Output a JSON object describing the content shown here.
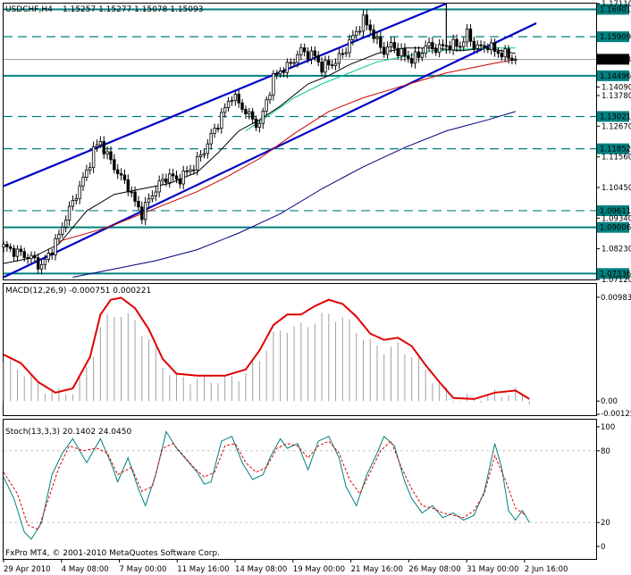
{
  "header": {
    "symbol": "USDCHF,H4",
    "ohlc": "1.15257 1.15277 1.15078 1.15093"
  },
  "colors": {
    "background": "#ffffff",
    "hline": "#00807f",
    "channel": "#0000c8",
    "ma_fast": "#000000",
    "ma_green": "#00c890",
    "ma_red": "#c80000",
    "ma_navy": "#000080",
    "macd_hist": "#a0a0a0",
    "macd_signal": "#e00000",
    "stoch_main": "#008080",
    "stoch_signal": "#e00000"
  },
  "chart_data": [
    {
      "type": "candlestick",
      "symbol": "USDCHF",
      "timeframe": "H4",
      "ylim": [
        1.0712,
        1.1711
      ],
      "price_ticks": [
        "1.17110",
        "1.14090",
        "1.13780",
        "1.12670",
        "1.11560",
        "1.10450",
        "1.09340",
        "1.08230",
        "1.07120"
      ],
      "current_price": "1.15093",
      "horizontal_levels": [
        {
          "label": "1.16901",
          "value": 1.16901,
          "style": "solid"
        },
        {
          "label": "1.15909",
          "value": 1.15909,
          "style": "dashed"
        },
        {
          "label": "1.14496",
          "value": 1.14496,
          "style": "solid"
        },
        {
          "label": "1.13021",
          "value": 1.13021,
          "style": "dashed"
        },
        {
          "label": "1.11852",
          "value": 1.11852,
          "style": "dashed"
        },
        {
          "label": "1.09611",
          "value": 1.09611,
          "style": "dashed"
        },
        {
          "label": "1.09006",
          "value": 1.09006,
          "style": "solid"
        },
        {
          "label": "1.07336",
          "value": 1.07336,
          "style": "solid"
        }
      ],
      "close_path": [
        [
          0,
          1.083
        ],
        [
          4,
          1.081
        ],
        [
          8,
          1.079
        ],
        [
          11,
          1.076
        ],
        [
          13,
          1.08
        ],
        [
          16,
          1.087
        ],
        [
          18,
          1.094
        ],
        [
          20,
          1.099
        ],
        [
          22,
          1.105
        ],
        [
          24,
          1.11
        ],
        [
          26,
          1.118
        ],
        [
          28,
          1.121
        ],
        [
          30,
          1.116
        ],
        [
          32,
          1.112
        ],
        [
          34,
          1.108
        ],
        [
          36,
          1.105
        ],
        [
          38,
          1.099
        ],
        [
          40,
          1.095
        ],
        [
          42,
          1.1
        ],
        [
          44,
          1.104
        ],
        [
          46,
          1.107
        ],
        [
          48,
          1.109
        ],
        [
          50,
          1.107
        ],
        [
          52,
          1.109
        ],
        [
          54,
          1.111
        ],
        [
          56,
          1.114
        ],
        [
          58,
          1.118
        ],
        [
          60,
          1.123
        ],
        [
          62,
          1.128
        ],
        [
          64,
          1.133
        ],
        [
          66,
          1.138
        ],
        [
          68,
          1.135
        ],
        [
          70,
          1.132
        ],
        [
          72,
          1.129
        ],
        [
          74,
          1.127
        ],
        [
          76,
          1.136
        ],
        [
          78,
          1.144
        ],
        [
          80,
          1.147
        ],
        [
          82,
          1.148
        ],
        [
          84,
          1.151
        ],
        [
          86,
          1.154
        ],
        [
          88,
          1.153
        ],
        [
          90,
          1.152
        ],
        [
          92,
          1.148
        ],
        [
          94,
          1.149
        ],
        [
          96,
          1.15
        ],
        [
          98,
          1.153
        ],
        [
          100,
          1.157
        ],
        [
          102,
          1.161
        ],
        [
          104,
          1.165
        ],
        [
          106,
          1.162
        ],
        [
          108,
          1.157
        ],
        [
          110,
          1.154
        ],
        [
          112,
          1.156
        ],
        [
          114,
          1.154
        ],
        [
          116,
          1.152
        ],
        [
          118,
          1.151
        ],
        [
          120,
          1.152
        ],
        [
          122,
          1.156
        ],
        [
          124,
          1.155
        ],
        [
          126,
          1.155
        ],
        [
          128,
          1.156
        ],
        [
          130,
          1.156
        ],
        [
          132,
          1.156
        ],
        [
          134,
          1.16
        ],
        [
          136,
          1.156
        ],
        [
          138,
          1.155
        ],
        [
          140,
          1.156
        ],
        [
          142,
          1.154
        ],
        [
          144,
          1.153
        ],
        [
          146,
          1.152
        ],
        [
          148,
          1.1509
        ]
      ],
      "moving_averages": [
        {
          "color": "#000000",
          "points": [
            [
              0,
              1.077
            ],
            [
              8,
              1.079
            ],
            [
              16,
              1.084
            ],
            [
              24,
              1.096
            ],
            [
              32,
              1.102
            ],
            [
              40,
              1.104
            ],
            [
              48,
              1.106
            ],
            [
              56,
              1.11
            ],
            [
              62,
              1.117
            ],
            [
              68,
              1.125
            ],
            [
              74,
              1.129
            ],
            [
              80,
              1.134
            ],
            [
              88,
              1.142
            ],
            [
              94,
              1.145
            ],
            [
              100,
              1.149
            ],
            [
              108,
              1.153
            ],
            [
              116,
              1.155
            ],
            [
              124,
              1.155
            ],
            [
              132,
              1.154
            ],
            [
              140,
              1.155
            ],
            [
              148,
              1.153
            ]
          ]
        },
        {
          "color": "#00c890",
          "points": [
            [
              70,
              1.125
            ],
            [
              76,
              1.13
            ],
            [
              84,
              1.137
            ],
            [
              92,
              1.142
            ],
            [
              100,
              1.146
            ],
            [
              108,
              1.15
            ],
            [
              116,
              1.152
            ],
            [
              124,
              1.154
            ],
            [
              132,
              1.1545
            ],
            [
              140,
              1.155
            ],
            [
              148,
              1.155
            ]
          ]
        },
        {
          "color": "#c80000",
          "points": [
            [
              16,
              1.085
            ],
            [
              30,
              1.09
            ],
            [
              44,
              1.097
            ],
            [
              56,
              1.103
            ],
            [
              64,
              1.108
            ],
            [
              74,
              1.115
            ],
            [
              84,
              1.124
            ],
            [
              94,
              1.132
            ],
            [
              104,
              1.137
            ],
            [
              112,
              1.14
            ],
            [
              120,
              1.143
            ],
            [
              128,
              1.146
            ],
            [
              136,
              1.148
            ],
            [
              142,
              1.1495
            ],
            [
              148,
              1.1508
            ]
          ]
        },
        {
          "color": "#000080",
          "points": [
            [
              20,
              1.072
            ],
            [
              32,
              1.075
            ],
            [
              44,
              1.078
            ],
            [
              56,
              1.082
            ],
            [
              68,
              1.088
            ],
            [
              80,
              1.095
            ],
            [
              92,
              1.104
            ],
            [
              104,
              1.112
            ],
            [
              116,
              1.119
            ],
            [
              128,
              1.125
            ],
            [
              140,
              1.129
            ],
            [
              148,
              1.132
            ]
          ]
        }
      ],
      "channel_lines": [
        [
          [
            0,
            1.105
          ],
          [
            128,
            1.1711
          ]
        ],
        [
          [
            0,
            1.072
          ],
          [
            154,
            1.164
          ]
        ]
      ],
      "x_tick_labels": [
        "29 Apr 2010",
        "4 May 08:00",
        "7 May 00:00",
        "11 May 16:00",
        "14 May 08:00",
        "19 May 00:00",
        "21 May 16:00",
        "26 May 08:00",
        "31 May 00:00",
        "2 Jun 16:00"
      ],
      "footer": "FxPro MT4, © 2001-2010 MetaQuotes Software Corp."
    },
    {
      "type": "bar",
      "title": "MACD(12,26,9) -0.000751 0.000221",
      "ylim": [
        -0.00125,
        0.00983
      ],
      "ticks": [
        "0.009834",
        "0.00",
        "-0.00125"
      ],
      "signal_path": [
        [
          0,
          0.0044
        ],
        [
          5,
          0.0036
        ],
        [
          10,
          0.0018
        ],
        [
          15,
          0.0008
        ],
        [
          20,
          0.0012
        ],
        [
          25,
          0.0042
        ],
        [
          28,
          0.0082
        ],
        [
          31,
          0.0096
        ],
        [
          34,
          0.0098
        ],
        [
          38,
          0.0088
        ],
        [
          42,
          0.0068
        ],
        [
          46,
          0.004
        ],
        [
          50,
          0.0026
        ],
        [
          56,
          0.0024
        ],
        [
          64,
          0.0024
        ],
        [
          70,
          0.003
        ],
        [
          74,
          0.0048
        ],
        [
          78,
          0.0072
        ],
        [
          82,
          0.0082
        ],
        [
          86,
          0.0082
        ],
        [
          90,
          0.009
        ],
        [
          94,
          0.0096
        ],
        [
          98,
          0.0092
        ],
        [
          102,
          0.008
        ],
        [
          106,
          0.0064
        ],
        [
          110,
          0.0058
        ],
        [
          114,
          0.006
        ],
        [
          118,
          0.0052
        ],
        [
          122,
          0.0034
        ],
        [
          126,
          0.0018
        ],
        [
          130,
          0.0003
        ],
        [
          136,
          0.0002
        ],
        [
          142,
          0.0008
        ],
        [
          148,
          0.001
        ],
        [
          152,
          0.0002
        ]
      ]
    },
    {
      "type": "line",
      "title": "Stoch(13,3,3) 20.1402 24.0450",
      "ylim": [
        0,
        100
      ],
      "ticks": [
        "100",
        "80",
        "20",
        "0"
      ],
      "main_path": [
        [
          0,
          58
        ],
        [
          3,
          40
        ],
        [
          6,
          12
        ],
        [
          8,
          6
        ],
        [
          11,
          20
        ],
        [
          14,
          60
        ],
        [
          17,
          78
        ],
        [
          20,
          90
        ],
        [
          24,
          70
        ],
        [
          28,
          90
        ],
        [
          31,
          70
        ],
        [
          33,
          54
        ],
        [
          36,
          74
        ],
        [
          39,
          48
        ],
        [
          41,
          34
        ],
        [
          44,
          60
        ],
        [
          47,
          96
        ],
        [
          50,
          82
        ],
        [
          53,
          72
        ],
        [
          56,
          62
        ],
        [
          58,
          52
        ],
        [
          60,
          54
        ],
        [
          63,
          88
        ],
        [
          66,
          92
        ],
        [
          69,
          70
        ],
        [
          72,
          56
        ],
        [
          75,
          60
        ],
        [
          77,
          74
        ],
        [
          80,
          90
        ],
        [
          82,
          82
        ],
        [
          85,
          86
        ],
        [
          88,
          64
        ],
        [
          91,
          88
        ],
        [
          94,
          92
        ],
        [
          97,
          74
        ],
        [
          99,
          50
        ],
        [
          102,
          34
        ],
        [
          105,
          60
        ],
        [
          108,
          78
        ],
        [
          110,
          92
        ],
        [
          113,
          84
        ],
        [
          116,
          54
        ],
        [
          118,
          40
        ],
        [
          121,
          28
        ],
        [
          124,
          34
        ],
        [
          127,
          24
        ],
        [
          130,
          28
        ],
        [
          133,
          22
        ],
        [
          136,
          26
        ],
        [
          139,
          46
        ],
        [
          142,
          86
        ],
        [
          144,
          66
        ],
        [
          146,
          30
        ],
        [
          148,
          22
        ],
        [
          150,
          30
        ],
        [
          152,
          20
        ]
      ],
      "signal_path": [
        [
          0,
          62
        ],
        [
          4,
          44
        ],
        [
          7,
          18
        ],
        [
          10,
          14
        ],
        [
          13,
          40
        ],
        [
          16,
          66
        ],
        [
          19,
          84
        ],
        [
          23,
          80
        ],
        [
          27,
          82
        ],
        [
          30,
          78
        ],
        [
          33,
          60
        ],
        [
          37,
          66
        ],
        [
          40,
          46
        ],
        [
          43,
          50
        ],
        [
          46,
          82
        ],
        [
          49,
          86
        ],
        [
          52,
          76
        ],
        [
          55,
          66
        ],
        [
          58,
          58
        ],
        [
          61,
          62
        ],
        [
          64,
          84
        ],
        [
          67,
          86
        ],
        [
          70,
          70
        ],
        [
          73,
          62
        ],
        [
          76,
          66
        ],
        [
          79,
          82
        ],
        [
          82,
          86
        ],
        [
          85,
          84
        ],
        [
          88,
          74
        ],
        [
          91,
          84
        ],
        [
          94,
          88
        ],
        [
          97,
          78
        ],
        [
          100,
          56
        ],
        [
          103,
          44
        ],
        [
          106,
          62
        ],
        [
          109,
          80
        ],
        [
          112,
          88
        ],
        [
          115,
          66
        ],
        [
          118,
          48
        ],
        [
          121,
          34
        ],
        [
          124,
          32
        ],
        [
          127,
          28
        ],
        [
          130,
          26
        ],
        [
          133,
          24
        ],
        [
          136,
          30
        ],
        [
          139,
          44
        ],
        [
          142,
          76
        ],
        [
          145,
          56
        ],
        [
          148,
          32
        ],
        [
          151,
          26
        ]
      ]
    }
  ]
}
